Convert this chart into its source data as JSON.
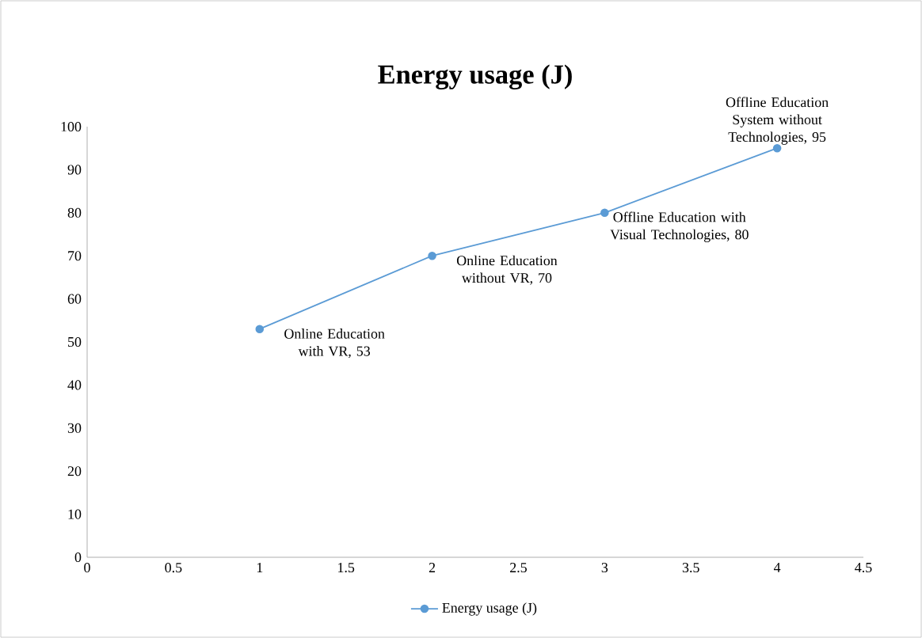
{
  "chart_data": {
    "type": "line",
    "title": "Energy usage (J)",
    "x": [
      1,
      2,
      3,
      4
    ],
    "series": [
      {
        "name": "Energy usage (J)",
        "color": "#5b9bd5",
        "values": [
          53,
          70,
          80,
          95
        ]
      }
    ],
    "annotations": [
      {
        "text": "Online Education with VR, 53",
        "x": 1,
        "y": 53
      },
      {
        "text": "Online Education without VR, 70",
        "x": 2,
        "y": 70
      },
      {
        "text": "Offline Education with Visual Technologies, 80",
        "x": 3,
        "y": 80
      },
      {
        "text": "Offline Education System without Technologies, 95",
        "x": 4,
        "y": 95
      }
    ],
    "xlim": [
      0,
      4.5
    ],
    "xticks": [
      0,
      0.5,
      1,
      1.5,
      2,
      2.5,
      3,
      3.5,
      4,
      4.5
    ],
    "ylim": [
      0,
      100
    ],
    "yticks": [
      0,
      10,
      20,
      30,
      40,
      50,
      60,
      70,
      80,
      90,
      100
    ],
    "grid": false,
    "legend": "bottom",
    "marker": "circle",
    "line_style": "solid"
  }
}
